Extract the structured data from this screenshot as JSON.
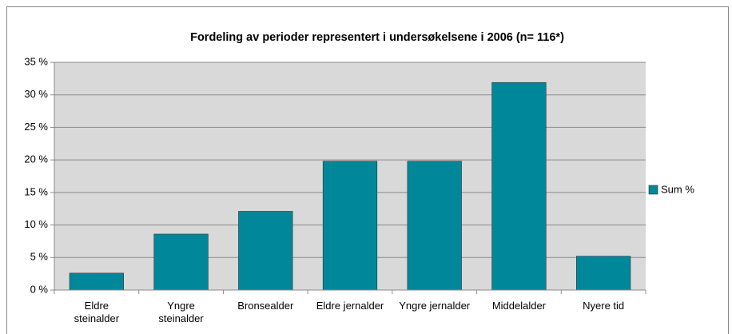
{
  "chart_data": {
    "type": "bar",
    "title": "Fordeling av perioder representert i undersøkelsene i 2006 (n= 116*)",
    "categories": [
      "Eldre\nsteinalder",
      "Yngre\nsteinalder",
      "Bronsealder",
      "Eldre jernalder",
      "Yngre jernalder",
      "Middelalder",
      "Nyere tid"
    ],
    "series": [
      {
        "name": "Sum %",
        "color": "#00889a",
        "values": [
          2.6,
          8.6,
          12.1,
          19.8,
          19.8,
          31.9,
          5.2
        ]
      }
    ],
    "ylim": [
      0,
      35
    ],
    "yticks": [
      {
        "value": 0,
        "label": "0 %"
      },
      {
        "value": 5,
        "label": "5 %"
      },
      {
        "value": 10,
        "label": "10 %"
      },
      {
        "value": 15,
        "label": "15 %"
      },
      {
        "value": 20,
        "label": "20 %"
      },
      {
        "value": 25,
        "label": "25 %"
      },
      {
        "value": 30,
        "label": "30 %"
      },
      {
        "value": 35,
        "label": "35 %"
      }
    ],
    "grid": true,
    "legend": "right"
  }
}
